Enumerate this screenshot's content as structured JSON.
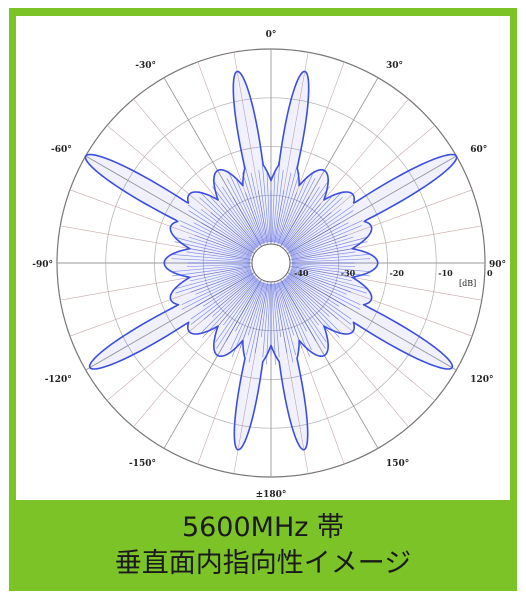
{
  "caption": {
    "line1": "5600MHz 帯",
    "line2": "垂直面内指向性イメージ"
  },
  "colors": {
    "frame": "#7cc327",
    "pattern": "#3b4ee0",
    "grid": "#b8b8b8"
  },
  "chart_data": {
    "type": "polar",
    "title": "",
    "angle_labels": [
      "0°",
      "30°",
      "60°",
      "90°",
      "120°",
      "150°",
      "±180°",
      "-150°",
      "-120°",
      "-90°",
      "-60°",
      "-30°"
    ],
    "radial_labels": [
      "-40",
      "-30",
      "-20",
      "-10",
      "0"
    ],
    "radial_unit": "[dB]",
    "rlim": [
      -40,
      0
    ],
    "grid": true,
    "series": [
      {
        "lobes": [
          {
            "angle_deg": -60,
            "peak_db": 0
          },
          {
            "angle_deg": 60,
            "peak_db": 0
          },
          {
            "angle_deg": -120,
            "peak_db": -1
          },
          {
            "angle_deg": 120,
            "peak_db": -1
          },
          {
            "angle_deg": -10,
            "peak_db": -4
          },
          {
            "angle_deg": 10,
            "peak_db": -4
          },
          {
            "angle_deg": -170,
            "peak_db": -5
          },
          {
            "angle_deg": 170,
            "peak_db": -5
          },
          {
            "angle_deg": -90,
            "peak_db": -24
          },
          {
            "angle_deg": 90,
            "peak_db": -22
          }
        ]
      }
    ]
  }
}
